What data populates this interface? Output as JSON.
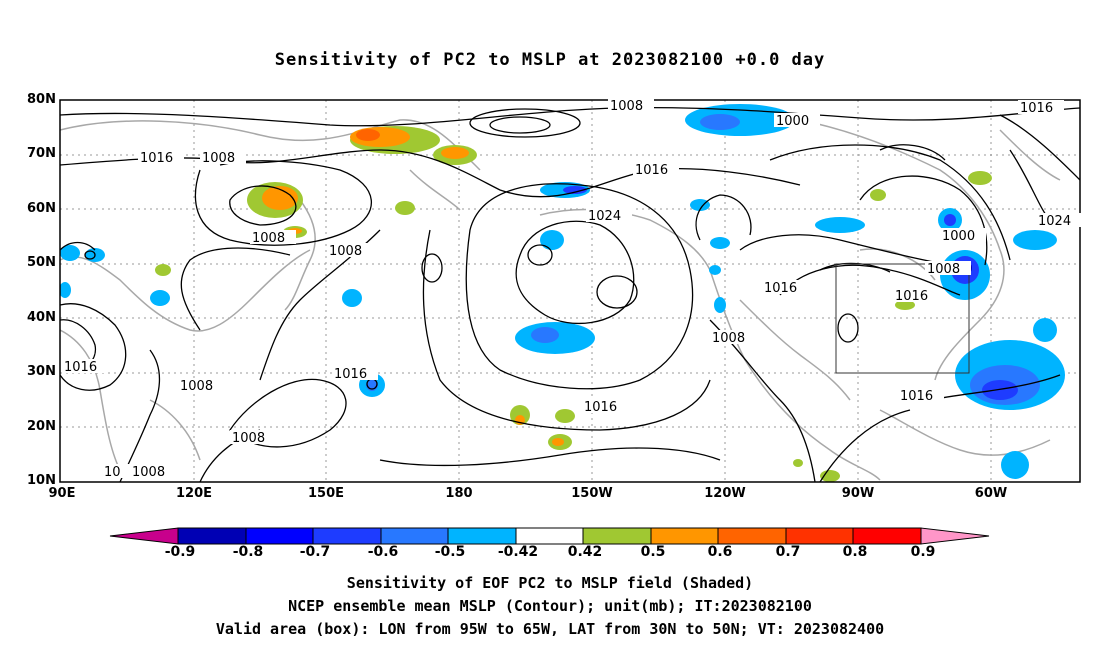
{
  "title": "Sensitivity of PC2 to MSLP at 2023082100 +0.0 day",
  "y_ticks": [
    "80N",
    "70N",
    "60N",
    "50N",
    "40N",
    "30N",
    "20N",
    "10N"
  ],
  "x_ticks": [
    "90E",
    "120E",
    "150E",
    "180",
    "150W",
    "120W",
    "90W",
    "60W"
  ],
  "contour_labels": [
    "1008",
    "1000",
    "1016",
    "1016",
    "1008",
    "1016",
    "1008",
    "1000",
    "1008",
    "1024",
    "1016",
    "1016",
    "1008",
    "1016",
    "1016",
    "1008",
    "1016",
    "1008",
    "1024",
    "1016",
    "1000",
    "1008",
    "1016",
    "1008",
    "1016",
    "10",
    "1008"
  ],
  "colorbar": {
    "labels": [
      "-0.9",
      "-0.8",
      "-0.7",
      "-0.6",
      "-0.5",
      "-0.42",
      "0.42",
      "0.5",
      "0.6",
      "0.7",
      "0.8",
      "0.9"
    ],
    "colors": [
      "#c8008c",
      "#0000b4",
      "#0000ff",
      "#1e3cff",
      "#2878ff",
      "#00b4ff",
      "#ffffff",
      "#a0c832",
      "#ff9600",
      "#ff6400",
      "#ff3200",
      "#ff0000",
      "#ff96c8"
    ]
  },
  "captions": [
    "Sensitivity of EOF PC2 to MSLP field (Shaded)",
    "NCEP ensemble mean MSLP (Contour); unit(mb); IT:2023082100",
    "Valid area (box): LON from 95W to 65W, LAT from 30N to 50N; VT: 2023082400"
  ],
  "valid_box": {
    "lon_min": -95,
    "lon_max": -65,
    "lat_min": 30,
    "lat_max": 50
  }
}
